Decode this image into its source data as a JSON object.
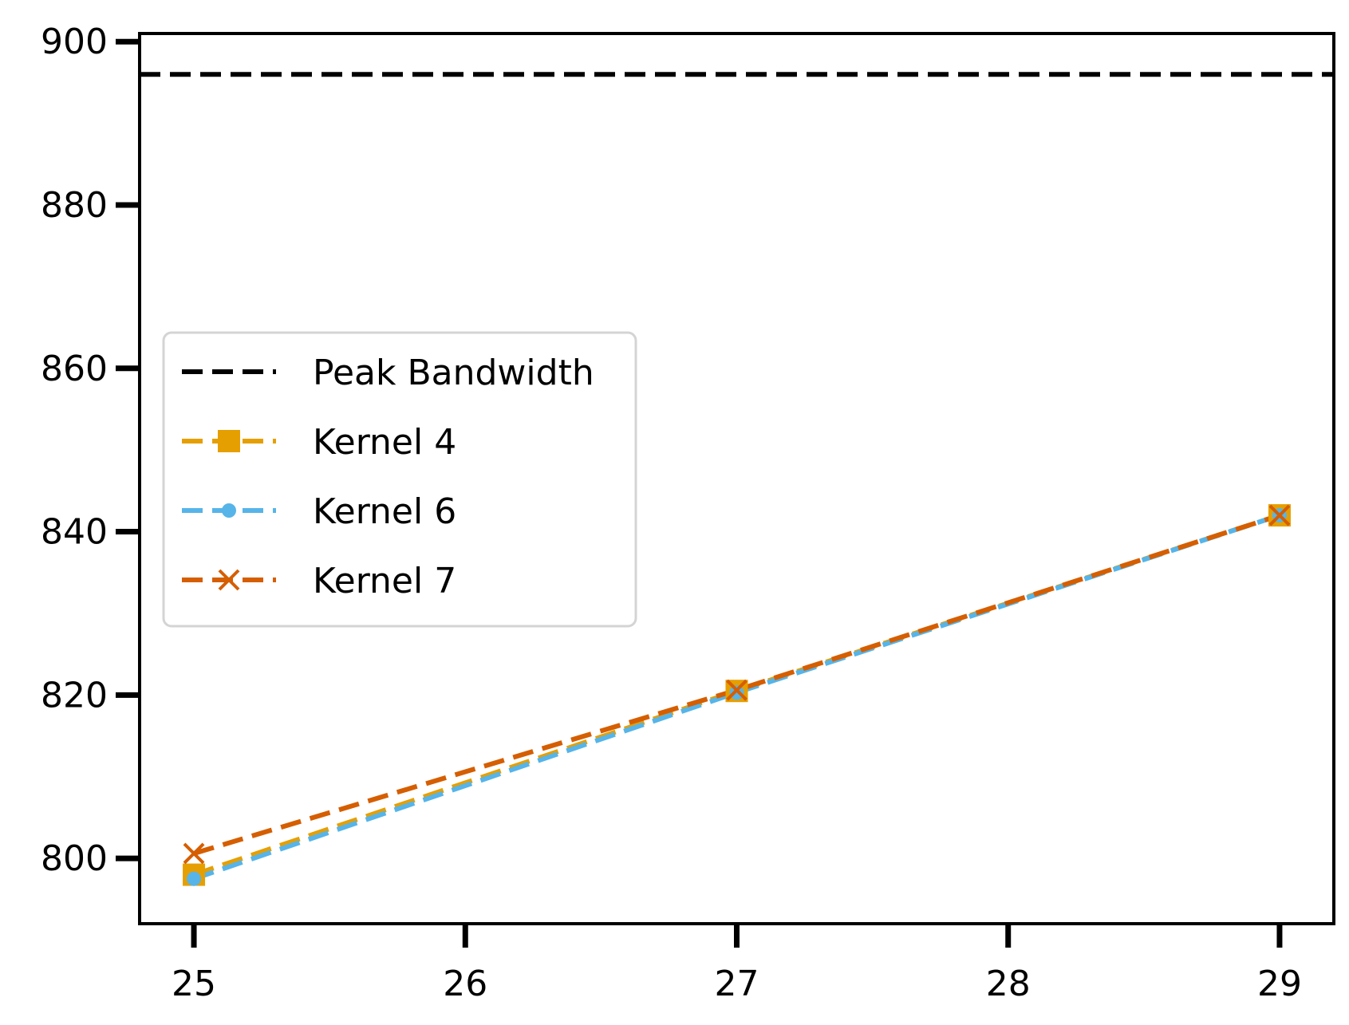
{
  "chart_data": {
    "type": "line",
    "title": "",
    "xlabel": "",
    "ylabel": "",
    "xlim": [
      24.8,
      29.2
    ],
    "ylim": [
      792,
      901
    ],
    "x_ticks": [
      25,
      26,
      27,
      28,
      29
    ],
    "y_ticks": [
      800,
      820,
      840,
      860,
      880,
      900
    ],
    "x": [
      25,
      27,
      29
    ],
    "grid": false,
    "legend_position": "center-left",
    "series": [
      {
        "name": "Peak Bandwidth",
        "style": "dashed",
        "color": "#000000",
        "marker": "none",
        "hline": 896
      },
      {
        "name": "Kernel 4",
        "style": "dashed",
        "color": "#E69F00",
        "marker": "square",
        "values": [
          798,
          820.5,
          842
        ]
      },
      {
        "name": "Kernel 6",
        "style": "dashed",
        "color": "#56B4E9",
        "marker": "circle",
        "values": [
          797.5,
          820.3,
          842
        ]
      },
      {
        "name": "Kernel 7",
        "style": "dashed",
        "color": "#D55E00",
        "marker": "x",
        "values": [
          800.6,
          820.6,
          842
        ]
      }
    ]
  }
}
